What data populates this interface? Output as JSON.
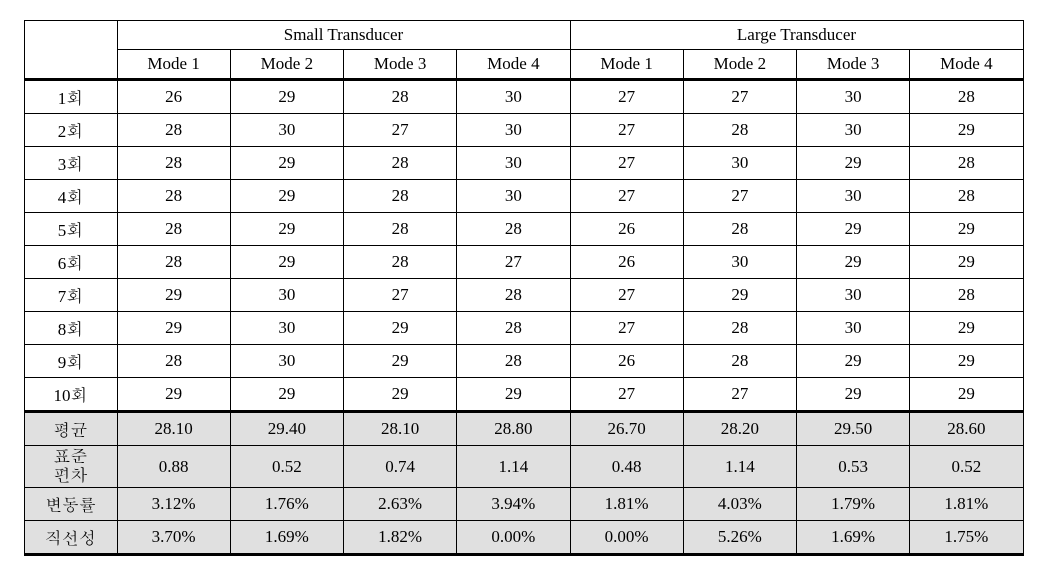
{
  "table": {
    "group_headers": [
      "Small Transducer",
      "Large Transducer"
    ],
    "mode_headers": [
      "Mode 1",
      "Mode 2",
      "Mode 3",
      "Mode 4",
      "Mode 1",
      "Mode 2",
      "Mode 3",
      "Mode 4"
    ],
    "rows": [
      {
        "label": "1회",
        "cells": [
          "26",
          "29",
          "28",
          "30",
          "27",
          "27",
          "30",
          "28"
        ]
      },
      {
        "label": "2회",
        "cells": [
          "28",
          "30",
          "27",
          "30",
          "27",
          "28",
          "30",
          "29"
        ]
      },
      {
        "label": "3회",
        "cells": [
          "28",
          "29",
          "28",
          "30",
          "27",
          "30",
          "29",
          "28"
        ]
      },
      {
        "label": "4회",
        "cells": [
          "28",
          "29",
          "28",
          "30",
          "27",
          "27",
          "30",
          "28"
        ]
      },
      {
        "label": "5회",
        "cells": [
          "28",
          "29",
          "28",
          "28",
          "26",
          "28",
          "29",
          "29"
        ]
      },
      {
        "label": "6회",
        "cells": [
          "28",
          "29",
          "28",
          "27",
          "26",
          "30",
          "29",
          "29"
        ]
      },
      {
        "label": "7회",
        "cells": [
          "29",
          "30",
          "27",
          "28",
          "27",
          "29",
          "30",
          "28"
        ]
      },
      {
        "label": "8회",
        "cells": [
          "29",
          "30",
          "29",
          "28",
          "27",
          "28",
          "30",
          "29"
        ]
      },
      {
        "label": "9회",
        "cells": [
          "28",
          "30",
          "29",
          "28",
          "26",
          "28",
          "29",
          "29"
        ]
      },
      {
        "label": "10회",
        "cells": [
          "29",
          "29",
          "29",
          "29",
          "27",
          "27",
          "29",
          "29"
        ]
      }
    ],
    "summary": [
      {
        "label": "평균",
        "cells": [
          "28.10",
          "29.40",
          "28.10",
          "28.80",
          "26.70",
          "28.20",
          "29.50",
          "28.60"
        ]
      },
      {
        "label": "표준\n편차",
        "cells": [
          "0.88",
          "0.52",
          "0.74",
          "1.14",
          "0.48",
          "1.14",
          "0.53",
          "0.52"
        ]
      },
      {
        "label": "변동률",
        "cells": [
          "3.12%",
          "1.76%",
          "2.63%",
          "3.94%",
          "1.81%",
          "4.03%",
          "1.79%",
          "1.81%"
        ]
      },
      {
        "label": "직선성",
        "cells": [
          "3.70%",
          "1.69%",
          "1.82%",
          "0.00%",
          "0.00%",
          "5.26%",
          "1.69%",
          "1.75%"
        ]
      }
    ]
  }
}
